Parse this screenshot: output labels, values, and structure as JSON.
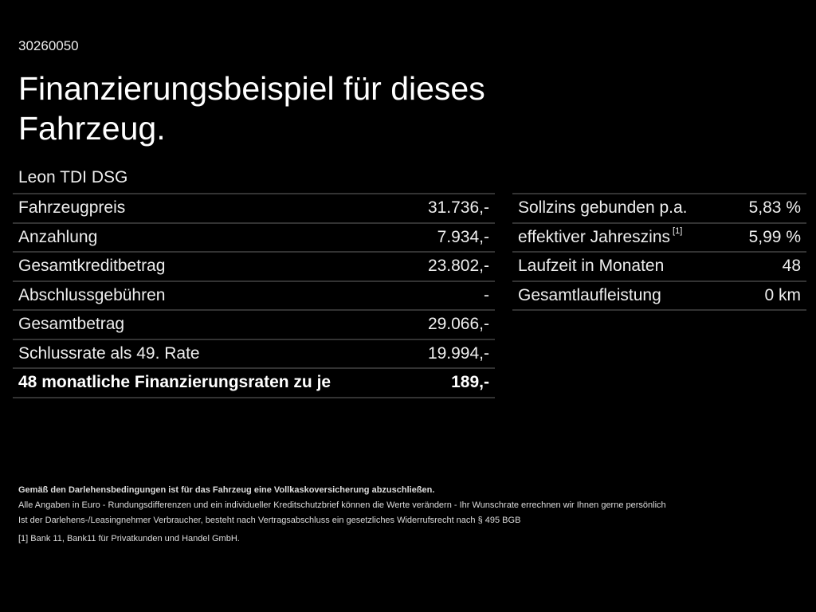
{
  "code": "30260050",
  "title": "Finanzierungsbeispiel für dieses Fahrzeug.",
  "model": "Leon TDI DSG",
  "left_rows": [
    {
      "label": "Fahrzeugpreis",
      "value": "31.736,-"
    },
    {
      "label": "Anzahlung",
      "value": "7.934,-"
    },
    {
      "label": "Gesamtkreditbetrag",
      "value": "23.802,-"
    },
    {
      "label": "Abschlussgebühren",
      "value": "-"
    },
    {
      "label": "Gesamtbetrag",
      "value": "29.066,-"
    },
    {
      "label": "Schlussrate als 49. Rate",
      "value": "19.994,-"
    },
    {
      "label": "48 monatliche Finanzierungsraten zu je",
      "value": "189,-"
    }
  ],
  "right_rows": [
    {
      "label": "Sollzins gebunden p.a.",
      "sup": "",
      "value": "5,83 %"
    },
    {
      "label": "effektiver Jahreszins",
      "sup": "[1]",
      "value": "5,99 %"
    },
    {
      "label": "Laufzeit in Monaten",
      "sup": "",
      "value": "48"
    },
    {
      "label": "Gesamtlaufleistung",
      "sup": "",
      "value": "0 km"
    }
  ],
  "notes": {
    "insurance": "Gemäß den Darlehensbedingungen ist für das Fahrzeug eine Vollkaskoversicherung abzuschließen.",
    "line1": "Alle Angaben in Euro - Rundungsdifferenzen und ein individueller Kreditschutzbrief können die Werte verändern - Ihr Wunschrate errechnen wir Ihnen gerne persönlich",
    "line2": "Ist der Darlehens-/Leasingnehmer Verbraucher, besteht nach Vertragsabschluss ein gesetzliches Widerrufsrecht nach § 495 BGB",
    "footnote_mark": "[1]",
    "footnote": "Bank 11, Bank11 für Privatkunden und Handel GmbH."
  }
}
